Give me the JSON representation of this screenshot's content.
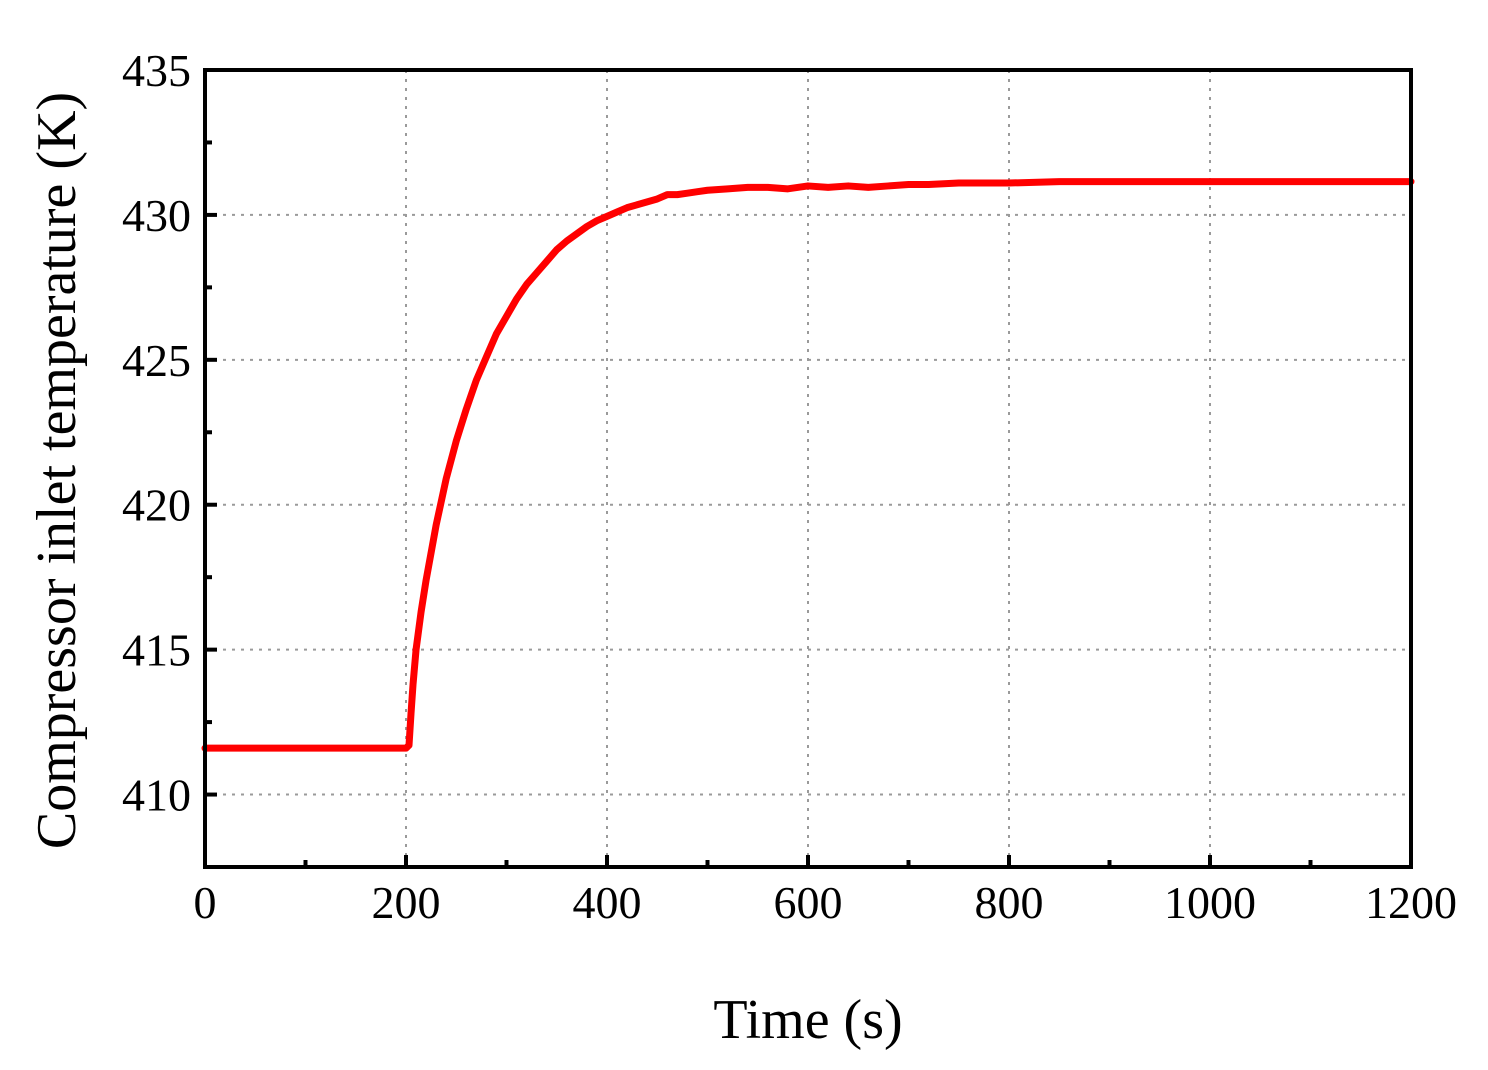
{
  "chart_data": {
    "type": "line",
    "xlabel": "Time (s)",
    "ylabel": "Compressor inlet temperature (K)",
    "xlim": [
      0,
      1200
    ],
    "ylim": [
      407.5,
      435
    ],
    "x_ticks": [
      0,
      200,
      400,
      600,
      800,
      1000,
      1200
    ],
    "y_ticks": [
      410,
      415,
      420,
      425,
      430,
      435
    ],
    "x_minor_step": 100,
    "y_minor_step": 2.5,
    "grid": true,
    "series": [
      {
        "color": "#ff0000",
        "x": [
          0,
          50,
          100,
          150,
          195,
          200,
          203,
          205,
          207,
          210,
          215,
          220,
          230,
          240,
          250,
          260,
          270,
          280,
          290,
          300,
          310,
          320,
          330,
          340,
          350,
          360,
          370,
          380,
          390,
          400,
          410,
          420,
          430,
          440,
          450,
          460,
          470,
          480,
          490,
          500,
          520,
          540,
          560,
          580,
          600,
          620,
          640,
          660,
          680,
          700,
          720,
          750,
          800,
          850,
          900,
          950,
          1000,
          1050,
          1100,
          1150,
          1200
        ],
        "y": [
          411.6,
          411.6,
          411.6,
          411.6,
          411.6,
          411.6,
          411.7,
          412.8,
          413.8,
          415.0,
          416.3,
          417.4,
          419.3,
          420.9,
          422.2,
          423.3,
          424.3,
          425.1,
          425.9,
          426.5,
          427.1,
          427.6,
          428.0,
          428.4,
          428.8,
          429.1,
          429.35,
          429.6,
          429.8,
          429.95,
          430.1,
          430.25,
          430.35,
          430.45,
          430.55,
          430.7,
          430.7,
          430.75,
          430.8,
          430.85,
          430.9,
          430.95,
          430.95,
          430.9,
          431.0,
          430.95,
          431.0,
          430.95,
          431.0,
          431.05,
          431.05,
          431.1,
          431.1,
          431.15,
          431.15,
          431.15,
          431.15,
          431.15,
          431.15,
          431.15,
          431.15
        ]
      }
    ]
  }
}
